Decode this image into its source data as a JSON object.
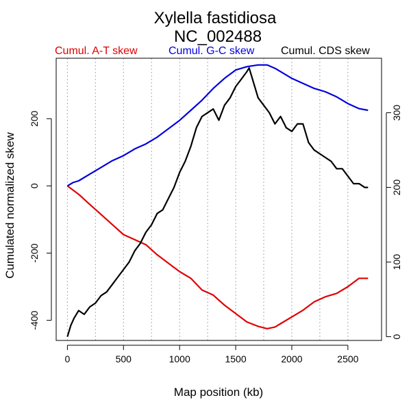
{
  "chart_data": {
    "type": "line",
    "title": "Xylella fastidiosa",
    "subtitle": "NC_002488",
    "xlabel": "Map position (kb)",
    "ylabel": "Cumulated normalized skew",
    "xlim": [
      -100,
      2800
    ],
    "ylim": [
      -460,
      380
    ],
    "right_ylim": [
      -5,
      373
    ],
    "x_ticks": [
      0,
      500,
      1000,
      1500,
      2000,
      2500
    ],
    "y_ticks": [
      -400,
      -200,
      0,
      200
    ],
    "right_ticks": [
      0,
      100,
      200,
      300
    ],
    "vgrid": [
      0,
      250,
      500,
      750,
      1000,
      1250,
      1500,
      1750,
      2000,
      2250,
      2500
    ],
    "series": [
      {
        "name": "Cumul. A-T skew",
        "axis": "left",
        "color": "#e00000",
        "x": [
          0,
          100,
          200,
          300,
          400,
          500,
          600,
          700,
          800,
          900,
          1000,
          1100,
          1200,
          1300,
          1400,
          1500,
          1600,
          1700,
          1780,
          1850,
          1900,
          2000,
          2100,
          2200,
          2300,
          2400,
          2500,
          2600,
          2680
        ],
        "values": [
          0,
          -25,
          -55,
          -85,
          -115,
          -145,
          -160,
          -175,
          -205,
          -230,
          -255,
          -275,
          -310,
          -325,
          -355,
          -380,
          -405,
          -418,
          -425,
          -420,
          -410,
          -390,
          -370,
          -345,
          -330,
          -320,
          -300,
          -275,
          -275
        ]
      },
      {
        "name": "Cumul. G-C skew",
        "axis": "left",
        "color": "#0000e0",
        "x": [
          0,
          50,
          100,
          200,
          300,
          400,
          500,
          550,
          600,
          700,
          800,
          900,
          1000,
          1100,
          1200,
          1300,
          1400,
          1500,
          1600,
          1700,
          1780,
          1850,
          1900,
          2000,
          2100,
          2200,
          2300,
          2400,
          2500,
          2600,
          2680
        ],
        "values": [
          0,
          10,
          15,
          35,
          55,
          75,
          90,
          100,
          110,
          125,
          145,
          170,
          195,
          225,
          255,
          290,
          320,
          345,
          355,
          360,
          360,
          350,
          340,
          320,
          305,
          290,
          280,
          265,
          245,
          230,
          225
        ]
      },
      {
        "name": "Cumul. CDS skew",
        "axis": "right",
        "color": "#000000",
        "x": [
          0,
          30,
          60,
          100,
          150,
          200,
          250,
          300,
          350,
          400,
          450,
          500,
          550,
          600,
          650,
          700,
          750,
          800,
          850,
          900,
          950,
          1000,
          1050,
          1100,
          1150,
          1200,
          1250,
          1300,
          1350,
          1400,
          1450,
          1500,
          1550,
          1600,
          1620,
          1650,
          1700,
          1750,
          1800,
          1850,
          1900,
          1950,
          2000,
          2050,
          2100,
          2150,
          2200,
          2250,
          2300,
          2350,
          2400,
          2450,
          2500,
          2550,
          2600,
          2650,
          2680
        ],
        "values": [
          0,
          15,
          25,
          35,
          30,
          40,
          45,
          55,
          60,
          70,
          80,
          90,
          100,
          115,
          125,
          140,
          150,
          165,
          170,
          185,
          200,
          220,
          235,
          255,
          280,
          295,
          300,
          305,
          290,
          310,
          320,
          335,
          345,
          355,
          360,
          345,
          320,
          310,
          300,
          285,
          295,
          280,
          275,
          285,
          285,
          260,
          250,
          245,
          240,
          235,
          225,
          225,
          215,
          205,
          205,
          200,
          200
        ]
      }
    ]
  }
}
